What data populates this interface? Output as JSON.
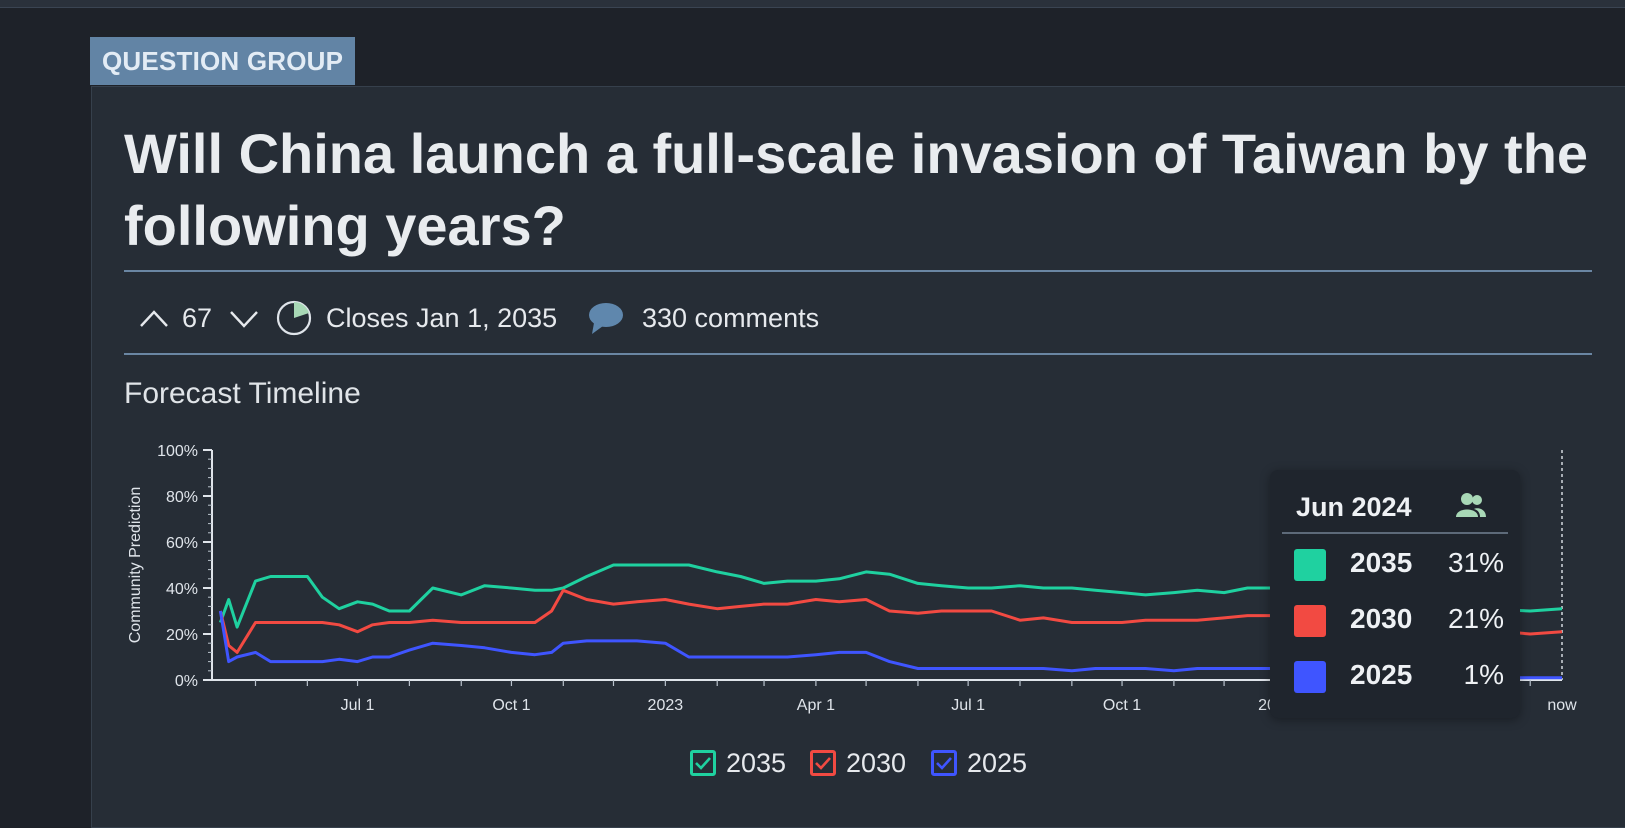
{
  "tag": "QUESTION GROUP",
  "title": "Will China launch a full-scale invasion of Taiwan by the following years?",
  "votes": {
    "count": "67"
  },
  "closes": "Closes Jan 1, 2035",
  "comments": "330 comments",
  "section_title": "Forecast Timeline",
  "colors": {
    "s2035": "#1fd1a0",
    "s2030": "#f24a42",
    "s2025": "#3f55ff",
    "bg": "#262d36"
  },
  "tooltip": {
    "date": "Jun 2024",
    "rows": [
      {
        "name": "2035",
        "value": "31%"
      },
      {
        "name": "2030",
        "value": "21%"
      },
      {
        "name": "2025",
        "value": "1%"
      }
    ]
  },
  "legend": [
    "2035",
    "2030",
    "2025"
  ],
  "chart_data": {
    "type": "line",
    "ylabel": "Community Prediction",
    "ylim": [
      0,
      100
    ],
    "y_ticks": [
      "0%",
      "20%",
      "40%",
      "60%",
      "80%",
      "100%"
    ],
    "x_ticks": [
      "Jul 1",
      "Oct 1",
      "2023",
      "Apr 1",
      "Jul 1",
      "Oct 1",
      "2024",
      "now"
    ],
    "x": [
      "2022-04-10",
      "2022-04-15",
      "2022-04-20",
      "2022-05-01",
      "2022-05-10",
      "2022-05-20",
      "2022-06-01",
      "2022-06-10",
      "2022-06-20",
      "2022-07-01",
      "2022-07-10",
      "2022-07-20",
      "2022-08-01",
      "2022-08-15",
      "2022-09-01",
      "2022-09-15",
      "2022-10-01",
      "2022-10-15",
      "2022-10-25",
      "2022-11-01",
      "2022-11-15",
      "2022-12-01",
      "2022-12-15",
      "2023-01-01",
      "2023-01-15",
      "2023-02-01",
      "2023-02-15",
      "2023-03-01",
      "2023-03-15",
      "2023-04-01",
      "2023-04-15",
      "2023-05-01",
      "2023-05-15",
      "2023-06-01",
      "2023-06-15",
      "2023-07-01",
      "2023-07-15",
      "2023-08-01",
      "2023-08-15",
      "2023-09-01",
      "2023-09-15",
      "2023-10-01",
      "2023-10-15",
      "2023-11-01",
      "2023-11-15",
      "2023-12-01",
      "2023-12-15",
      "2024-01-01",
      "2024-02-01",
      "2024-03-01",
      "2024-04-01",
      "2024-05-01",
      "2024-06-01",
      "2024-06-20"
    ],
    "series": [
      {
        "name": "2035",
        "values": [
          25,
          35,
          23,
          43,
          45,
          45,
          45,
          36,
          31,
          34,
          33,
          30,
          30,
          40,
          37,
          41,
          40,
          39,
          39,
          40,
          45,
          50,
          50,
          50,
          50,
          47,
          45,
          42,
          43,
          43,
          44,
          47,
          46,
          42,
          41,
          40,
          40,
          41,
          40,
          40,
          39,
          38,
          37,
          38,
          39,
          38,
          40,
          40,
          40,
          40,
          38,
          31,
          30,
          31
        ]
      },
      {
        "name": "2030",
        "values": [
          30,
          15,
          12,
          25,
          25,
          25,
          25,
          25,
          24,
          21,
          24,
          25,
          25,
          26,
          25,
          25,
          25,
          25,
          30,
          39,
          35,
          33,
          34,
          35,
          33,
          31,
          32,
          33,
          33,
          35,
          34,
          35,
          30,
          29,
          30,
          30,
          30,
          26,
          27,
          25,
          25,
          25,
          26,
          26,
          26,
          27,
          28,
          28,
          29,
          30,
          28,
          22,
          20,
          21
        ]
      },
      {
        "name": "2025",
        "values": [
          30,
          8,
          10,
          12,
          8,
          8,
          8,
          8,
          9,
          8,
          10,
          10,
          13,
          16,
          15,
          14,
          12,
          11,
          12,
          16,
          17,
          17,
          17,
          16,
          10,
          10,
          10,
          10,
          10,
          11,
          12,
          12,
          8,
          5,
          5,
          5,
          5,
          5,
          5,
          4,
          5,
          5,
          5,
          4,
          5,
          5,
          5,
          5,
          4,
          3,
          2,
          1,
          1,
          1
        ]
      }
    ]
  }
}
